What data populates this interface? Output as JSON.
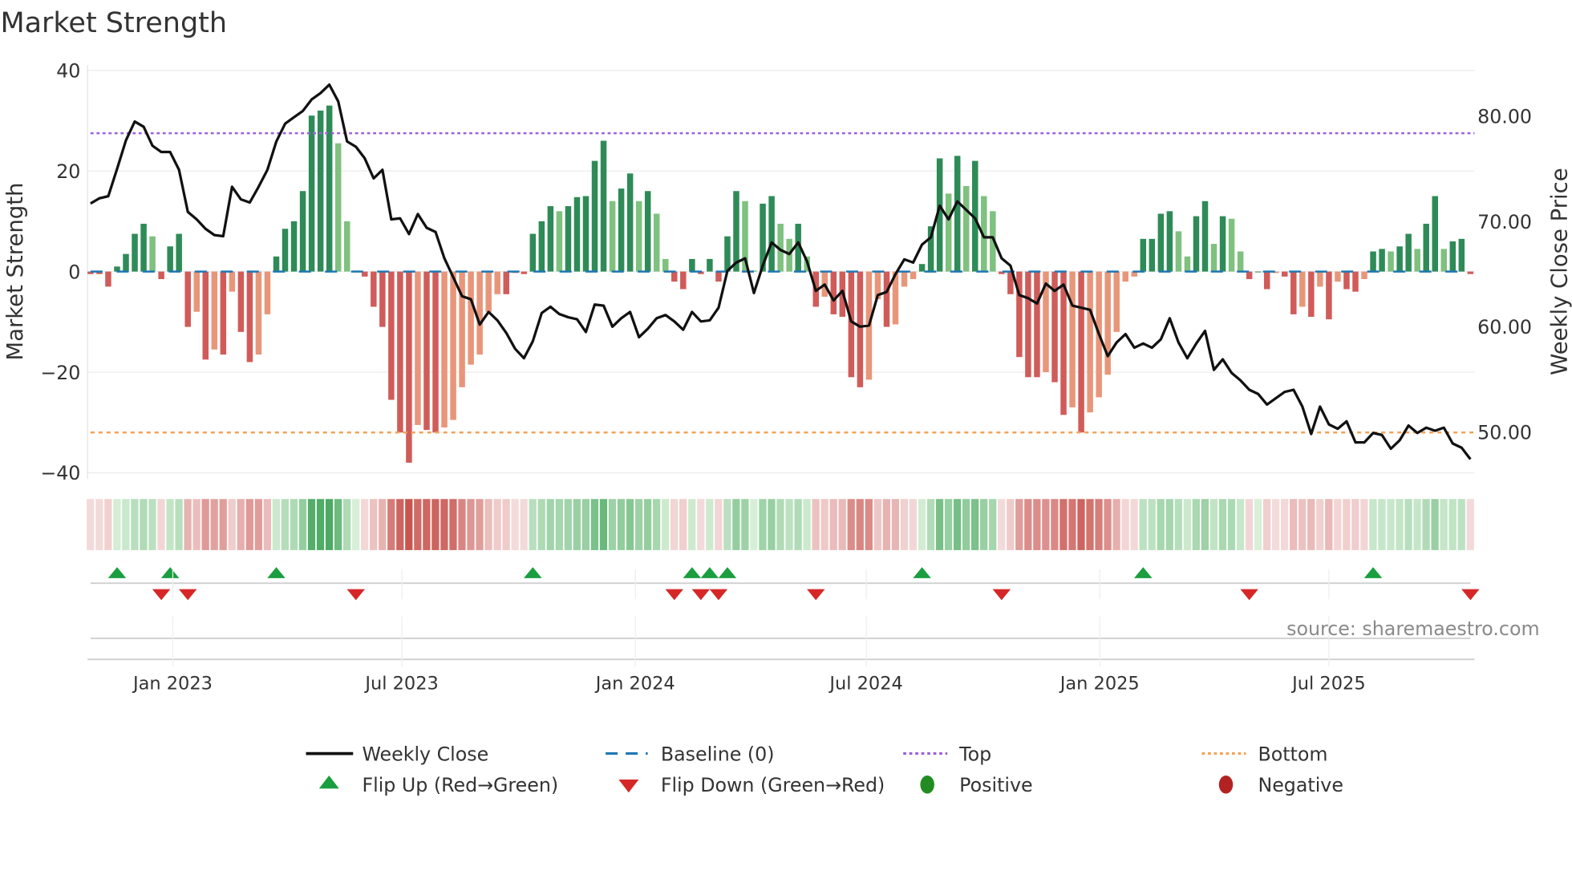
{
  "chart_data": {
    "type": "bar",
    "title": "Market Strength",
    "ylabel": "Market Strength",
    "y2label": "Weekly Close Price",
    "ylim": [
      -42,
      42
    ],
    "y2lim": [
      46,
      85
    ],
    "yticks": [
      "40",
      "20",
      "0",
      "−20",
      "−40"
    ],
    "ytick_values": [
      40,
      20,
      0,
      -20,
      -40
    ],
    "y2ticks": [
      "80.00",
      "70.00",
      "60.00",
      "50.00"
    ],
    "y2tick_values": [
      80,
      70,
      60,
      50
    ],
    "x_frequency": "weekly",
    "x_start": "2022-11-20",
    "xticks": [
      "Jan 2023",
      "Jul 2023",
      "Jan 2024",
      "Jul 2024",
      "Jan 2025",
      "Jul 2025"
    ],
    "xtick_weeks": [
      9.3,
      35.2,
      61.6,
      87.7,
      114.1,
      140
    ],
    "top_level": 27.5,
    "bottom_level": -32,
    "baseline": 0,
    "strength": [
      -0.5,
      -0.5,
      -3,
      1,
      3.5,
      7.5,
      9.5,
      7,
      -1.5,
      5,
      7.5,
      -11,
      -8,
      -17.5,
      -15.5,
      -16.5,
      -4,
      -12,
      -18,
      -16.5,
      -8.5,
      3,
      8.5,
      10,
      16,
      31,
      32,
      33,
      25.5,
      10,
      0.2,
      -1,
      -7,
      -11,
      -25.5,
      -32,
      -38,
      -30.5,
      -31.5,
      -32,
      -31,
      -29.5,
      -23,
      -18.5,
      -16.5,
      -8,
      -4.5,
      -4.5,
      -0.3,
      -0.5,
      7.5,
      10,
      13,
      12,
      13,
      14.8,
      15,
      22,
      26,
      14,
      16.5,
      19.5,
      14,
      16,
      11.5,
      2.5,
      -2,
      -3.5,
      2.5,
      -0.5,
      2.5,
      -2,
      7,
      16,
      14,
      0.2,
      13.5,
      15,
      9.5,
      6.5,
      9.5,
      3,
      -7,
      -5,
      -8.5,
      -9,
      -21,
      -23,
      -21.5,
      -5.5,
      -11,
      -10.5,
      -3,
      -1.5,
      1.5,
      9,
      22.5,
      15.5,
      23,
      17,
      22,
      15,
      12,
      -0.5,
      -4.5,
      -17,
      -21,
      -21,
      -20,
      -22,
      -28.5,
      -27,
      -32,
      -28,
      -25,
      -20.5,
      -12,
      -2,
      -1,
      6.5,
      6.5,
      11.5,
      12,
      8,
      3,
      11,
      14,
      5.5,
      11,
      10.5,
      4,
      -1.5,
      0,
      -3.5,
      -0.3,
      -1,
      -8.5,
      -7,
      -9,
      -3,
      -9.5,
      -2,
      -3.5,
      -4,
      -1.5,
      4,
      4.5,
      4,
      5,
      7.5,
      4.5,
      9.5,
      15,
      4.5,
      6,
      6.5,
      -0.5
    ],
    "weekly_close": [
      71.7,
      72.2,
      72.4,
      75,
      77.7,
      79.5,
      79,
      77.2,
      76.6,
      76.6,
      74.9,
      70.9,
      70.2,
      69.3,
      68.7,
      68.6,
      73.3,
      72.1,
      71.8,
      73.3,
      74.9,
      77.6,
      79.3,
      79.9,
      80.5,
      81.6,
      82.2,
      83,
      81.4,
      77.6,
      77.1,
      76,
      74.1,
      74.9,
      70.2,
      70.3,
      68.8,
      70.7,
      69.4,
      69,
      66.5,
      64.7,
      62.9,
      62.6,
      60.2,
      61.4,
      60.6,
      59.4,
      57.9,
      57,
      58.6,
      61.3,
      61.9,
      61.2,
      60.9,
      60.7,
      59.5,
      62.1,
      62,
      60,
      60.8,
      61.4,
      59,
      59.8,
      60.8,
      61.1,
      60.5,
      59.7,
      61.4,
      60.5,
      60.6,
      61.8,
      65.3,
      66.1,
      66.5,
      63.2,
      65.8,
      68,
      67.3,
      66.9,
      68,
      66.2,
      63.4,
      64,
      62.5,
      63.4,
      60.5,
      60,
      60.1,
      63,
      63.3,
      65,
      66.4,
      66.1,
      67.8,
      68.5,
      71.5,
      70.2,
      71.9,
      71.1,
      70.3,
      68.5,
      68.5,
      66.5,
      65.8,
      63,
      62.7,
      62.2,
      64.1,
      63.4,
      64,
      62,
      61.8,
      61.6,
      59.3,
      57.2,
      58.5,
      59.3,
      58,
      58.4,
      58,
      58.8,
      60.8,
      58.5,
      57,
      58.4,
      59.6,
      55.9,
      56.9,
      55.6,
      54.9,
      54,
      53.6,
      52.6,
      53.2,
      53.8,
      54,
      52.4,
      49.8,
      52.4,
      50.7,
      50.3,
      51,
      49,
      49,
      49.9,
      49.7,
      48.4,
      49.2,
      50.6,
      49.9,
      50.4,
      50.1,
      50.4,
      48.9,
      48.5,
      47.4
    ],
    "flip_up_weeks": [
      3,
      9,
      21,
      50,
      68,
      70,
      72,
      94,
      119,
      145
    ],
    "flip_down_weeks": [
      8,
      11,
      30,
      66,
      69,
      71,
      82,
      103,
      131,
      156
    ],
    "legend": {
      "weekly_close": "Weekly Close",
      "baseline": "Baseline (0)",
      "top": "Top",
      "bottom": "Bottom",
      "flip_up": "Flip Up (Red→Green)",
      "flip_down": "Flip Down (Green→Red)",
      "positive": "Positive",
      "negative": "Negative"
    },
    "legend_placement": "bottom-center",
    "source": "source: sharemaestro.com",
    "colors": {
      "pos_dark": "#2e8b57",
      "pos_light": "#7fc17f",
      "neg_dark": "#d05c5a",
      "neg_light": "#e8967a",
      "line": "#111111",
      "baseline": "#1f77b4",
      "top": "#9b5fe0",
      "bottom": "#f4a259",
      "flip_up": "#1a9e3f",
      "flip_down": "#d62728",
      "positive": "#228b22",
      "negative": "#b22222"
    }
  }
}
